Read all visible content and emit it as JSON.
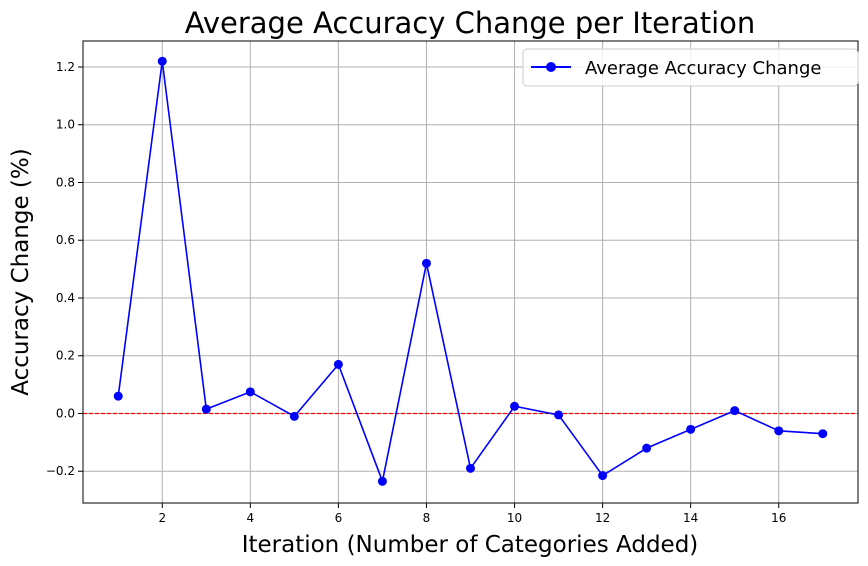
{
  "chart_data": {
    "type": "line",
    "title": "Average Accuracy Change per Iteration",
    "xlabel": "Iteration (Number of Categories Added)",
    "ylabel": "Accuracy Change (%)",
    "xlim": [
      0.2,
      17.8
    ],
    "ylim": [
      -0.31,
      1.29
    ],
    "xticks": [
      2,
      4,
      6,
      8,
      10,
      12,
      14,
      16
    ],
    "yticks": [
      -0.2,
      0.0,
      0.2,
      0.4,
      0.6,
      0.8,
      1.0,
      1.2
    ],
    "xtick_labels": [
      "2",
      "4",
      "6",
      "8",
      "10",
      "12",
      "14",
      "16"
    ],
    "ytick_labels": [
      "−0.2",
      "0.0",
      "0.2",
      "0.4",
      "0.6",
      "0.8",
      "1.0",
      "1.2"
    ],
    "grid": true,
    "legend_position": "top-right",
    "reference_line": {
      "y": 0.0,
      "color": "#ff0000",
      "style": "dashed"
    },
    "series": [
      {
        "name": "Average Accuracy Change",
        "color": "#0000ff",
        "marker": "circle",
        "x": [
          1,
          2,
          3,
          4,
          5,
          6,
          7,
          8,
          9,
          10,
          11,
          12,
          13,
          14,
          15,
          16,
          17
        ],
        "y": [
          0.06,
          1.22,
          0.015,
          0.075,
          -0.01,
          0.17,
          -0.235,
          0.52,
          -0.19,
          0.025,
          -0.005,
          -0.215,
          -0.12,
          -0.055,
          0.01,
          -0.06,
          -0.07
        ]
      }
    ]
  }
}
